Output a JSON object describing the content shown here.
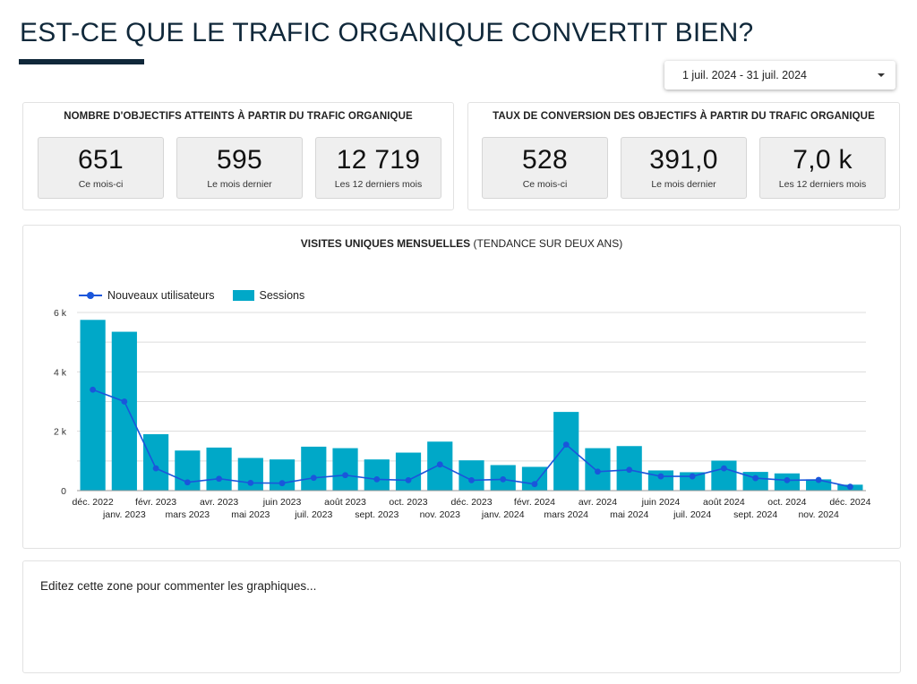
{
  "header": {
    "title": "EST-CE QUE LE TRAFIC ORGANIQUE CONVERTIT BIEN?",
    "date_range": "1 juil. 2024 - 31 juil. 2024"
  },
  "kpi_goals": {
    "title": "NOMBRE D'OBJECTIFS ATTEINTS À PARTIR DU TRAFIC ORGANIQUE",
    "cards": [
      {
        "value": "651",
        "label": "Ce mois-ci"
      },
      {
        "value": "595",
        "label": "Le mois dernier"
      },
      {
        "value": "12 719",
        "label": "Les 12 derniers mois"
      }
    ]
  },
  "kpi_conversion": {
    "title": "TAUX DE CONVERSION DES OBJECTIFS À PARTIR DU TRAFIC ORGANIQUE",
    "cards": [
      {
        "value": "528",
        "label": "Ce mois-ci"
      },
      {
        "value": "391,0",
        "label": "Le mois dernier"
      },
      {
        "value": "7,0 k",
        "label": "Les 12 derniers mois"
      }
    ]
  },
  "chart": {
    "title_bold": "VISITES UNIQUES MENSUELLES",
    "title_rest": " (TENDANCE SUR DEUX ANS)"
  },
  "chart_data": {
    "type": "bar",
    "categories": [
      "déc. 2022",
      "janv. 2023",
      "févr. 2023",
      "mars 2023",
      "avr. 2023",
      "mai 2023",
      "juin 2023",
      "juil. 2023",
      "août 2023",
      "sept. 2023",
      "oct. 2023",
      "nov. 2023",
      "déc. 2023",
      "janv. 2024",
      "févr. 2024",
      "mars 2024",
      "avr. 2024",
      "mai 2024",
      "juin 2024",
      "juil. 2024",
      "août 2024",
      "sept. 2024",
      "oct. 2024",
      "nov. 2024",
      "déc. 2024"
    ],
    "series": [
      {
        "name": "Sessions",
        "type": "bar",
        "color": "#00a8c8",
        "values": [
          5750,
          5350,
          1900,
          1350,
          1450,
          1100,
          1050,
          1480,
          1430,
          1050,
          1280,
          1650,
          1020,
          860,
          800,
          2650,
          1430,
          1500,
          680,
          620,
          1010,
          630,
          580,
          380,
          200
        ]
      },
      {
        "name": "Nouveaux utilisateurs",
        "type": "line",
        "color": "#1a56db",
        "values": [
          3400,
          3000,
          750,
          280,
          400,
          260,
          250,
          430,
          520,
          380,
          350,
          880,
          350,
          380,
          220,
          1550,
          640,
          700,
          480,
          480,
          750,
          420,
          350,
          360,
          130
        ]
      }
    ],
    "ylim": [
      0,
      6000
    ],
    "yticks": [
      0,
      2000,
      4000,
      6000
    ],
    "ytick_labels": [
      "0",
      "2 k",
      "4 k",
      "6 k"
    ],
    "grid": true,
    "legend_position": "top-left"
  },
  "comment": {
    "text": "Editez cette zone pour commenter les graphiques..."
  }
}
